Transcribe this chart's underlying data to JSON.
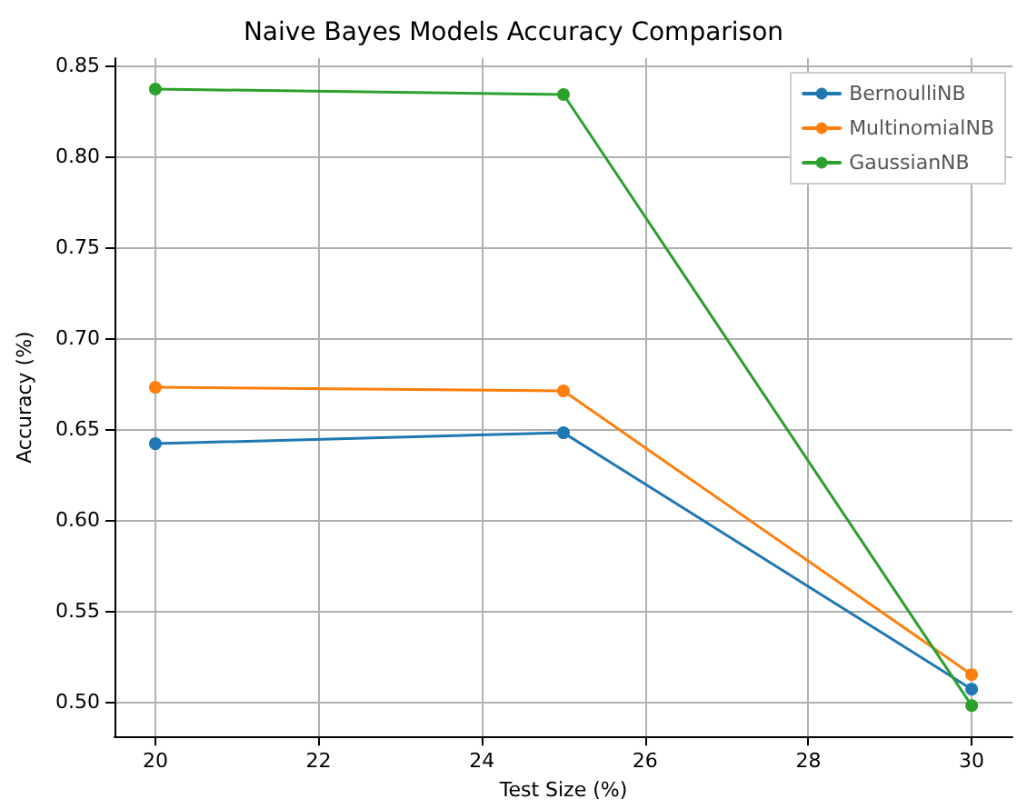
{
  "chart_data": {
    "type": "line",
    "title": "Naive Bayes Models Accuracy Comparison",
    "xlabel": "Test Size (%)",
    "ylabel": "Accuracy (%)",
    "x": [
      20,
      25,
      30
    ],
    "series": [
      {
        "name": "BernoulliNB",
        "color": "#1f77b4",
        "values": [
          0.642,
          0.648,
          0.507
        ]
      },
      {
        "name": "MultinomialNB",
        "color": "#ff7f0e",
        "values": [
          0.673,
          0.671,
          0.515
        ]
      },
      {
        "name": "GaussianNB",
        "color": "#2ca02c",
        "values": [
          0.837,
          0.834,
          0.498
        ]
      }
    ],
    "xlim": [
      19.5,
      30.5
    ],
    "xticks": [
      20,
      22,
      24,
      26,
      28,
      30
    ],
    "ylim": [
      0.481,
      0.854
    ],
    "yticks": [
      {
        "value": 0.5,
        "label": "0.50"
      },
      0.55,
      {
        "value": 0.6,
        "label": "0.60"
      },
      0.65,
      {
        "value": 0.7,
        "label": "0.70"
      },
      0.75,
      {
        "value": 0.8,
        "label": "0.80"
      },
      0.85
    ],
    "grid": true,
    "legend": "top right",
    "marker": "circle",
    "line_style": "solid"
  }
}
